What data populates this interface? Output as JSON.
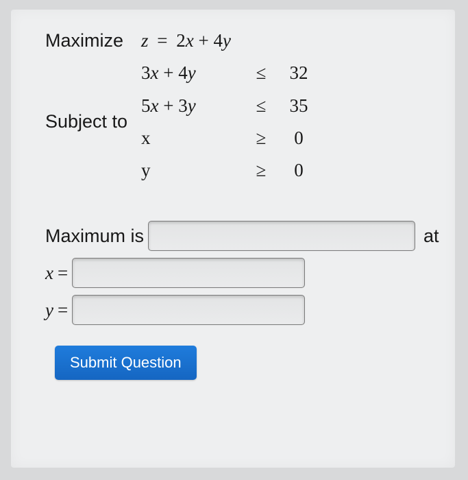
{
  "problem": {
    "maximize_label": "Maximize",
    "objective_lhs": "z",
    "objective_eq": "=",
    "objective_rhs_terms": "2x + 4y",
    "subject_to_label": "Subject to",
    "constraints": [
      {
        "lhs": "3x + 4y",
        "op": "≤",
        "rhs": "32"
      },
      {
        "lhs": "5x + 3y",
        "op": "≤",
        "rhs": "35"
      },
      {
        "lhs": "x",
        "op": "≥",
        "rhs": "0"
      },
      {
        "lhs": "y",
        "op": "≥",
        "rhs": "0"
      }
    ]
  },
  "answers": {
    "maximum_label": "Maximum is",
    "at_label": "at",
    "x_label": "x",
    "y_label": "y",
    "eq": "=",
    "max_value": "",
    "x_value": "",
    "y_value": ""
  },
  "submit_label": "Submit Question",
  "style": {
    "panel_bg": "#eeeff0",
    "page_bg": "#d8d9da",
    "text_color": "#181818",
    "button_bg": "#1566c2",
    "button_text": "#ffffff",
    "input_border": "#7a7a7a",
    "font_size_main": 27
  }
}
